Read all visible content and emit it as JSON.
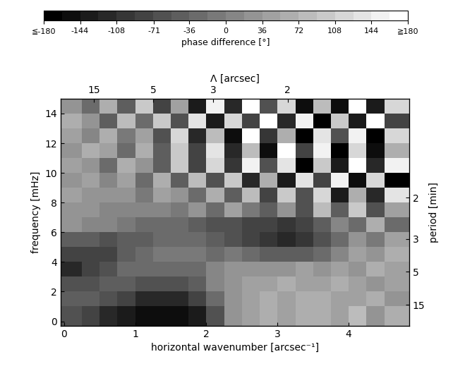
{
  "chart_data": {
    "type": "heatmap",
    "x_label": "horizontal wavenumber [arcsec⁻¹]",
    "y_label": "frequency [mHz]",
    "x2_label": "Λ [arcsec]",
    "y2_label": "period [min]",
    "xlim": [
      -0.05,
      4.85
    ],
    "ylim": [
      -0.3,
      15
    ],
    "xticks": [
      0,
      1,
      2,
      3,
      4
    ],
    "yticks": [
      0,
      2,
      4,
      6,
      8,
      10,
      12,
      14
    ],
    "x2ticks": [
      15,
      5,
      3,
      2
    ],
    "y2ticks": [
      2,
      3,
      5,
      15
    ],
    "x_edges": [
      -0.05,
      0.25,
      0.5,
      0.75,
      1.0,
      1.25,
      1.5,
      1.75,
      2.0,
      2.25,
      2.5,
      2.75,
      3.0,
      3.25,
      3.5,
      3.75,
      4.0,
      4.25,
      4.5,
      4.85
    ],
    "y_edges": [
      -0.3,
      1,
      2,
      3,
      4,
      5,
      6,
      7,
      8,
      9,
      10,
      11,
      12,
      13,
      14,
      15
    ],
    "cells": [
      [
        -60,
        -90,
        -110,
        -130,
        -150,
        -160,
        -150,
        -140,
        -60,
        20,
        40,
        60,
        50,
        70,
        60,
        40,
        80,
        30,
        60
      ],
      [
        -50,
        -40,
        -60,
        -80,
        -110,
        -120,
        -110,
        -80,
        -20,
        30,
        50,
        60,
        50,
        60,
        70,
        50,
        40,
        60,
        30
      ],
      [
        -70,
        -60,
        -40,
        -40,
        -60,
        -70,
        -60,
        -40,
        0,
        30,
        50,
        40,
        60,
        50,
        40,
        60,
        50,
        30,
        50
      ],
      [
        -110,
        -90,
        -60,
        -30,
        -20,
        -30,
        -30,
        -20,
        0,
        20,
        30,
        20,
        30,
        40,
        30,
        50,
        20,
        60,
        40
      ],
      [
        -80,
        -90,
        -80,
        -50,
        -20,
        -10,
        -10,
        -10,
        -20,
        -10,
        -30,
        -40,
        -50,
        -40,
        -20,
        10,
        40,
        20,
        60
      ],
      [
        -40,
        -50,
        -60,
        -50,
        -40,
        -30,
        -30,
        -30,
        -50,
        -70,
        -90,
        -100,
        -110,
        -100,
        -60,
        -20,
        30,
        -10,
        40
      ],
      [
        20,
        10,
        0,
        -10,
        -20,
        -20,
        -30,
        -40,
        -60,
        -60,
        -80,
        -90,
        -100,
        -80,
        -40,
        10,
        -30,
        60,
        -20
      ],
      [
        30,
        20,
        10,
        0,
        10,
        0,
        -10,
        20,
        -20,
        40,
        -10,
        -40,
        30,
        -60,
        80,
        -40,
        90,
        -70,
        40
      ],
      [
        40,
        30,
        20,
        30,
        -10,
        40,
        20,
        -30,
        60,
        -50,
        80,
        -90,
        100,
        -60,
        120,
        -140,
        60,
        -110,
        130
      ],
      [
        30,
        40,
        10,
        50,
        -20,
        60,
        -40,
        80,
        -60,
        100,
        -120,
        70,
        -130,
        140,
        -90,
        160,
        -150,
        120,
        -170
      ],
      [
        50,
        20,
        -30,
        60,
        30,
        -40,
        90,
        -80,
        110,
        -100,
        150,
        -60,
        130,
        -170,
        90,
        -140,
        170,
        -120,
        150
      ],
      [
        20,
        60,
        40,
        -20,
        70,
        -50,
        100,
        -90,
        140,
        -120,
        80,
        -160,
        170,
        -90,
        150,
        -170,
        110,
        -150,
        60
      ],
      [
        40,
        10,
        70,
        -10,
        50,
        -70,
        120,
        -110,
        80,
        -150,
        170,
        -100,
        60,
        -170,
        140,
        -60,
        160,
        -180,
        120
      ],
      [
        60,
        30,
        -40,
        80,
        -30,
        90,
        -60,
        130,
        -140,
        110,
        -80,
        170,
        -120,
        150,
        -170,
        90,
        -130,
        170,
        -90
      ],
      [
        30,
        -20,
        60,
        -50,
        90,
        -90,
        40,
        -130,
        150,
        -110,
        170,
        -70,
        120,
        -160,
        80,
        -150,
        180,
        -140,
        110
      ]
    ],
    "colorbar": {
      "label": "phase difference [°]",
      "range": [
        -180,
        180
      ],
      "ticks": [
        {
          "value": -180,
          "label": "≦-180"
        },
        -144,
        -108,
        -71,
        -36,
        0,
        36,
        72,
        108,
        144,
        {
          "value": 180,
          "label": "≧180"
        }
      ]
    }
  }
}
